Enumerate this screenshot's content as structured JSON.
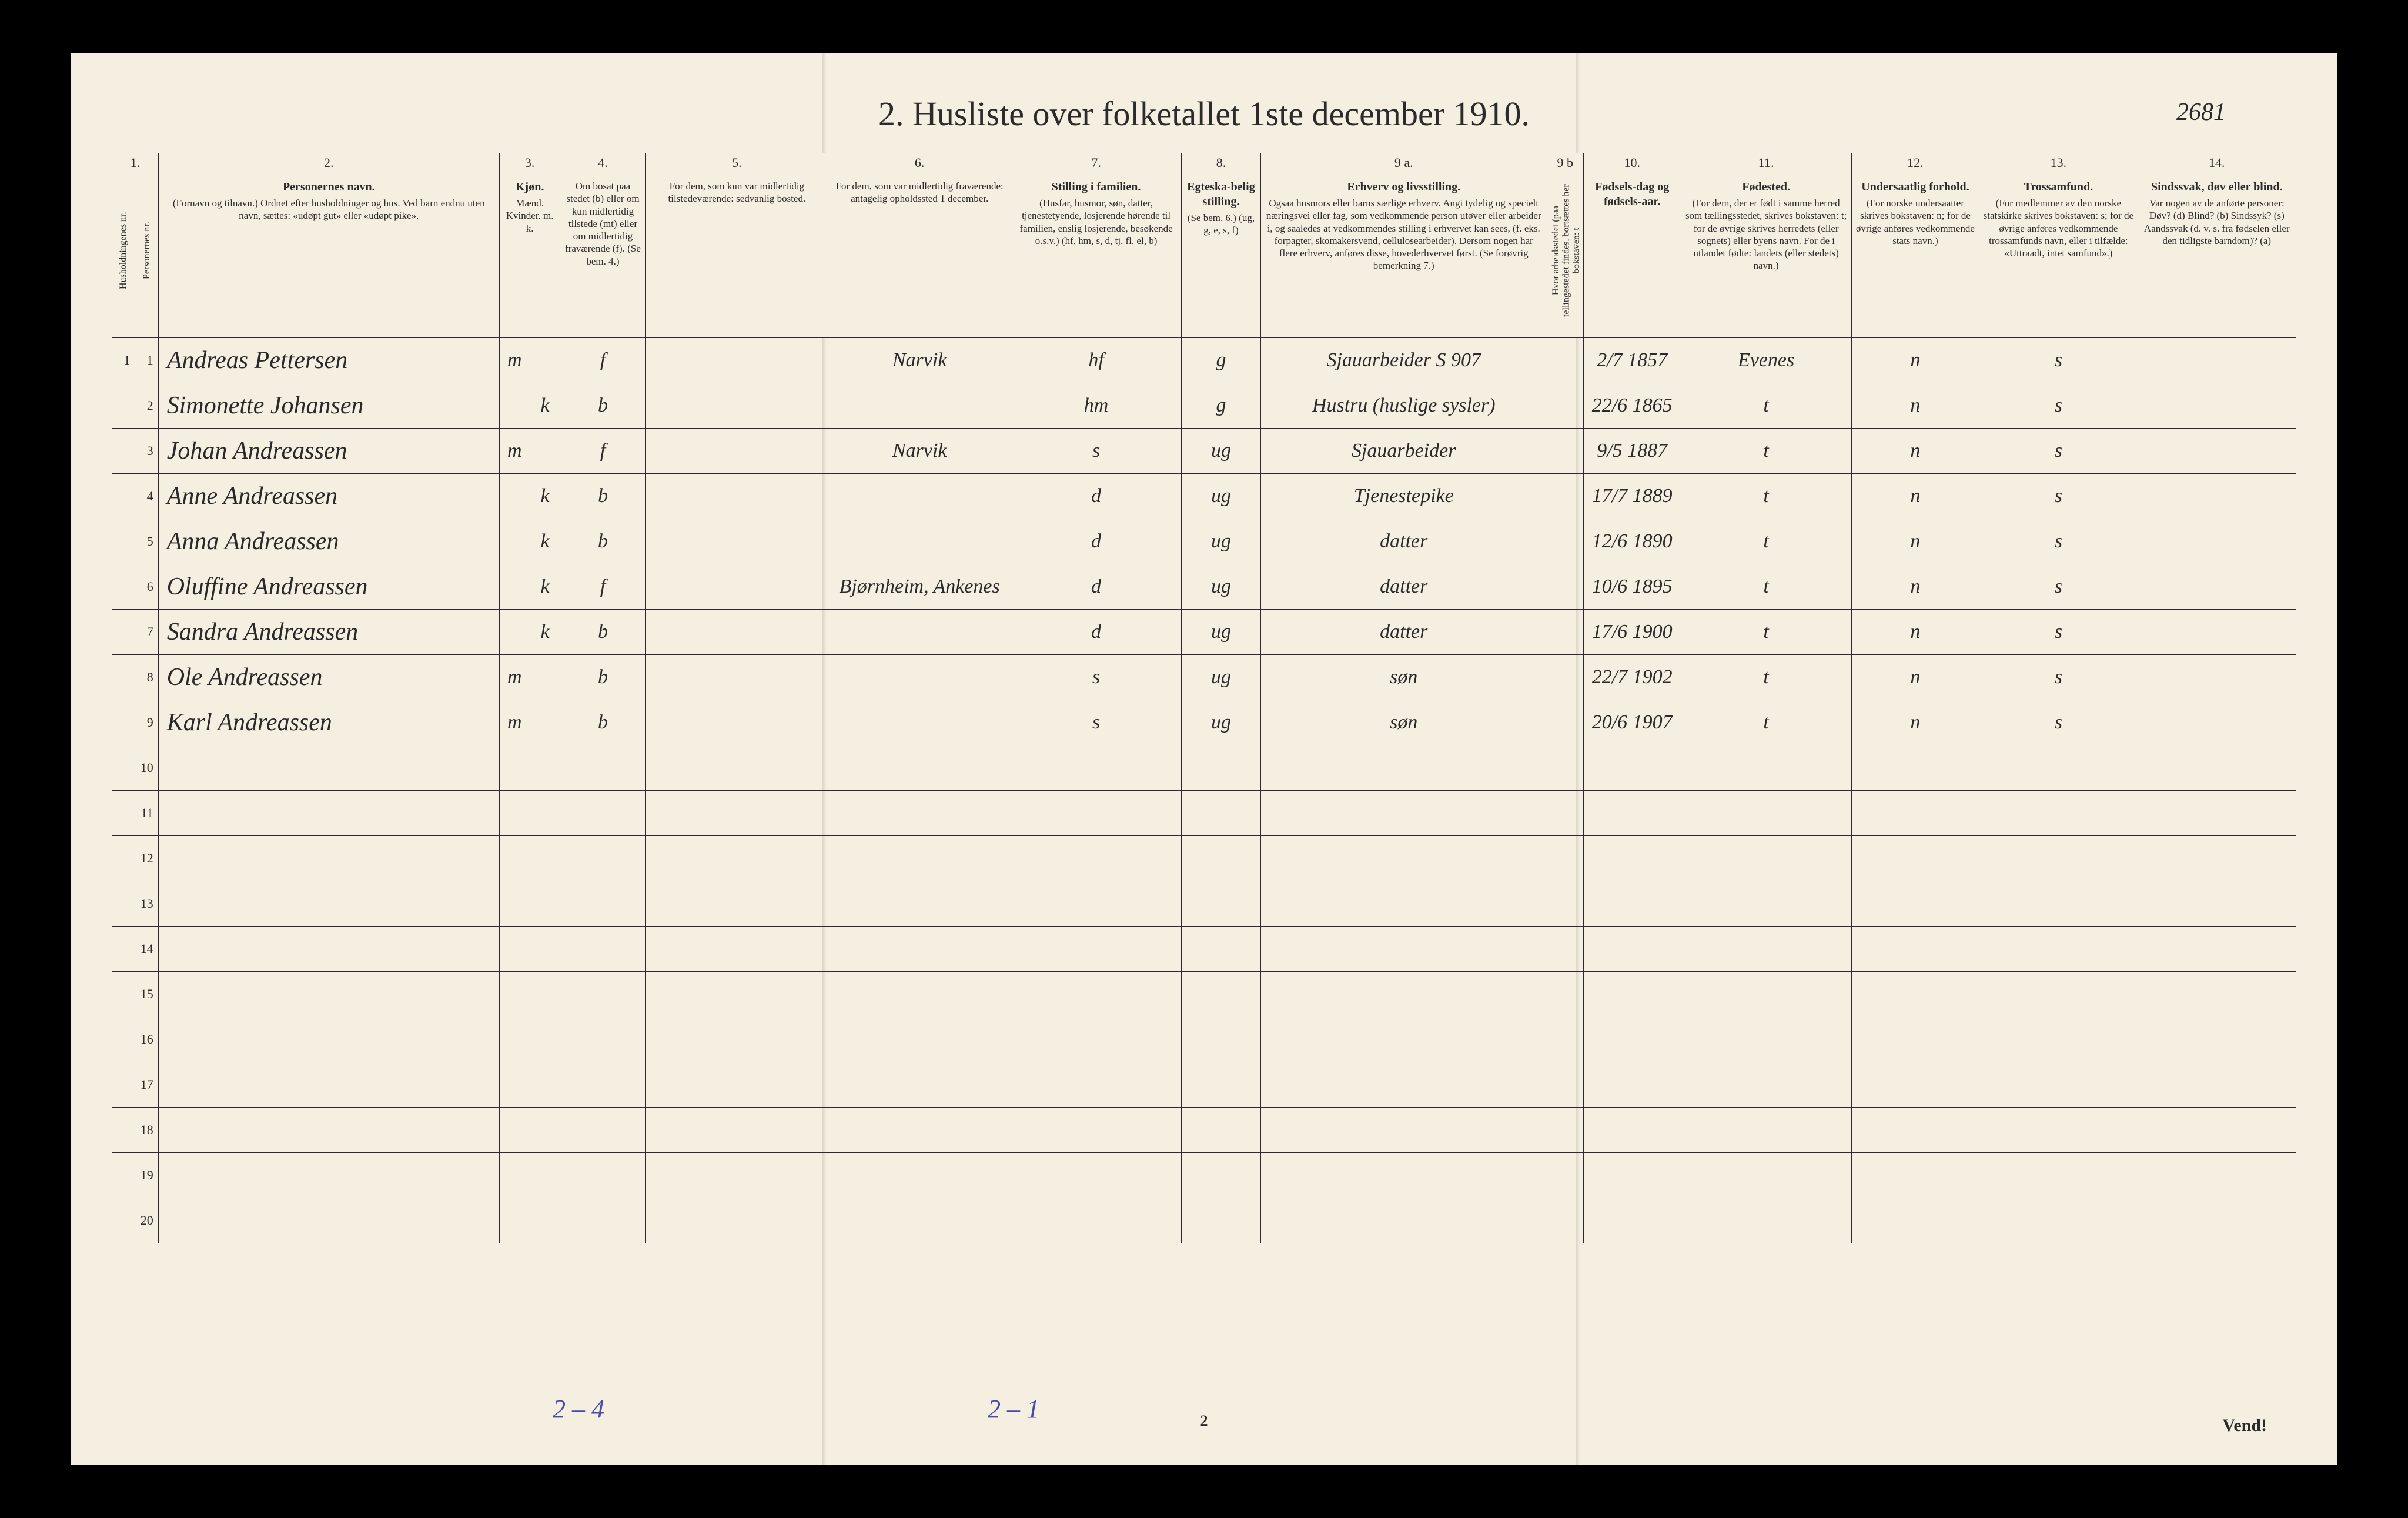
{
  "title": "2.  Husliste over folketallet 1ste december 1910.",
  "page_annotation": "2681",
  "footer_page_num": "2",
  "vend": "Vend!",
  "bottom_annot_1": "2 – 4",
  "bottom_annot_2": "2 – 1",
  "colnums": [
    "1.",
    "2.",
    "3.",
    "4.",
    "5.",
    "6.",
    "7.",
    "8.",
    "9 a.",
    "9 b",
    "10.",
    "11.",
    "12.",
    "13.",
    "14."
  ],
  "headers": {
    "c1": {
      "main": "",
      "sub": "Husholdningenes nr."
    },
    "c1b": {
      "main": "",
      "sub": "Personernes nr."
    },
    "c2": {
      "main": "Personernes navn.",
      "sub": "(Fornavn og tilnavn.)\nOrdnet efter husholdninger og hus.\nVed barn endnu uten navn, sættes: «udøpt gut» eller «udøpt pike»."
    },
    "c3": {
      "main": "Kjøn.",
      "sub": "Mænd.  Kvinder.\nm.   k."
    },
    "c4": {
      "main": "",
      "sub": "Om bosat paa stedet (b) eller om kun midlertidig tilstede (mt) eller om midlertidig fraværende (f). (Se bem. 4.)"
    },
    "c5": {
      "main": "",
      "sub": "For dem, som kun var midlertidig tilstedeværende:\nsedvanlig bosted."
    },
    "c6": {
      "main": "",
      "sub": "For dem, som var midlertidig fraværende:\nantagelig opholdssted 1 december."
    },
    "c7": {
      "main": "Stilling i familien.",
      "sub": "(Husfar, husmor, søn, datter, tjenestetyende, losjerende hørende til familien, enslig losjerende, besøkende o.s.v.)\n(hf, hm, s, d, tj, fl, el, b)"
    },
    "c8": {
      "main": "Egteska-belig stilling.",
      "sub": "(Se bem. 6.)\n(ug, g, e, s, f)"
    },
    "c9a": {
      "main": "Erhverv og livsstilling.",
      "sub": "Ogsaa husmors eller barns særlige erhverv.\nAngi tydelig og specielt næringsvei eller fag, som vedkommende person utøver eller arbeider i, og saaledes at vedkommendes stilling i erhvervet kan sees, (f. eks. forpagter, skomakersvend, cellulosearbeider). Dersom nogen har flere erhverv, anføres disse, hovederhvervet først.\n(Se forøvrig bemerkning 7.)"
    },
    "c9b": {
      "main": "",
      "sub": "Hvor arbeidsstedet (paa tellingestedet findes, bortsættes her bokstaven: t"
    },
    "c10": {
      "main": "Fødsels-dag og fødsels-aar.",
      "sub": ""
    },
    "c11": {
      "main": "Fødested.",
      "sub": "(For dem, der er født i samme herred som tællingsstedet, skrives bokstaven: t; for de øvrige skrives herredets (eller sognets) eller byens navn. For de i utlandet fødte: landets (eller stedets) navn.)"
    },
    "c12": {
      "main": "Undersaatlig forhold.",
      "sub": "(For norske undersaatter skrives bokstaven: n; for de øvrige anføres vedkommende stats navn.)"
    },
    "c13": {
      "main": "Trossamfund.",
      "sub": "(For medlemmer av den norske statskirke skrives bokstaven: s; for de øvrige anføres vedkommende trossamfunds navn, eller i tilfælde: «Uttraadt, intet samfund».)"
    },
    "c14": {
      "main": "Sindssvak, døv eller blind.",
      "sub": "Var nogen av de anførte personer:\nDøv?     (d)\nBlind?   (b)\nSindssyk? (s)\nAandssvak (d. v. s. fra fødselen eller den tidligste barndom)? (a)"
    }
  },
  "rows": [
    {
      "hh": "1",
      "n": "1",
      "name": "Andreas Pettersen",
      "m": "m",
      "k": "",
      "bmt": "f",
      "c5": "",
      "c6": "Narvik",
      "c7": "hf",
      "c8": "g",
      "c9a": "Sjauarbeider\nS 907",
      "c9b": "",
      "c10": "2/7 1857",
      "c11": "Evenes",
      "c12": "n",
      "c13": "s",
      "c14": ""
    },
    {
      "hh": "",
      "n": "2",
      "name": "Simonette Johansen",
      "m": "",
      "k": "k",
      "bmt": "b",
      "c5": "",
      "c6": "",
      "c7": "hm",
      "c8": "g",
      "c9a": "Hustru (huslige sysler)",
      "c9b": "",
      "c10": "22/6 1865",
      "c11": "t",
      "c12": "n",
      "c13": "s",
      "c14": ""
    },
    {
      "hh": "",
      "n": "3",
      "name": "Johan Andreassen",
      "m": "m",
      "k": "",
      "bmt": "f",
      "c5": "",
      "c6": "Narvik",
      "c7": "s",
      "c8": "ug",
      "c9a": "Sjauarbeider",
      "c9b": "",
      "c10": "9/5 1887",
      "c11": "t",
      "c12": "n",
      "c13": "s",
      "c14": ""
    },
    {
      "hh": "",
      "n": "4",
      "name": "Anne Andreassen",
      "m": "",
      "k": "k",
      "bmt": "b",
      "c5": "",
      "c6": "",
      "c7": "d",
      "c8": "ug",
      "c9a": "Tjenestepike",
      "c9b": "",
      "c10": "17/7 1889",
      "c11": "t",
      "c12": "n",
      "c13": "s",
      "c14": ""
    },
    {
      "hh": "",
      "n": "5",
      "name": "Anna Andreassen",
      "m": "",
      "k": "k",
      "bmt": "b",
      "c5": "",
      "c6": "",
      "c7": "d",
      "c8": "ug",
      "c9a": "datter",
      "c9b": "",
      "c10": "12/6 1890",
      "c11": "t",
      "c12": "n",
      "c13": "s",
      "c14": ""
    },
    {
      "hh": "",
      "n": "6",
      "name": "Oluffine Andreassen",
      "m": "",
      "k": "k",
      "bmt": "f",
      "c5": "",
      "c6": "Bjørnheim, Ankenes",
      "c7": "d",
      "c8": "ug",
      "c9a": "datter",
      "c9b": "",
      "c10": "10/6 1895",
      "c11": "t",
      "c12": "n",
      "c13": "s",
      "c14": ""
    },
    {
      "hh": "",
      "n": "7",
      "name": "Sandra Andreassen",
      "m": "",
      "k": "k",
      "bmt": "b",
      "c5": "",
      "c6": "",
      "c7": "d",
      "c8": "ug",
      "c9a": "datter",
      "c9b": "",
      "c10": "17/6 1900",
      "c11": "t",
      "c12": "n",
      "c13": "s",
      "c14": ""
    },
    {
      "hh": "",
      "n": "8",
      "name": "Ole Andreassen",
      "m": "m",
      "k": "",
      "bmt": "b",
      "c5": "",
      "c6": "",
      "c7": "s",
      "c8": "ug",
      "c9a": "søn",
      "c9b": "",
      "c10": "22/7 1902",
      "c11": "t",
      "c12": "n",
      "c13": "s",
      "c14": ""
    },
    {
      "hh": "",
      "n": "9",
      "name": "Karl Andreassen",
      "m": "m",
      "k": "",
      "bmt": "b",
      "c5": "",
      "c6": "",
      "c7": "s",
      "c8": "ug",
      "c9a": "søn",
      "c9b": "",
      "c10": "20/6 1907",
      "c11": "t",
      "c12": "n",
      "c13": "s",
      "c14": ""
    }
  ],
  "empty_row_labels": [
    "10",
    "11",
    "12",
    "13",
    "14",
    "15",
    "16",
    "17",
    "18",
    "19",
    "20"
  ]
}
